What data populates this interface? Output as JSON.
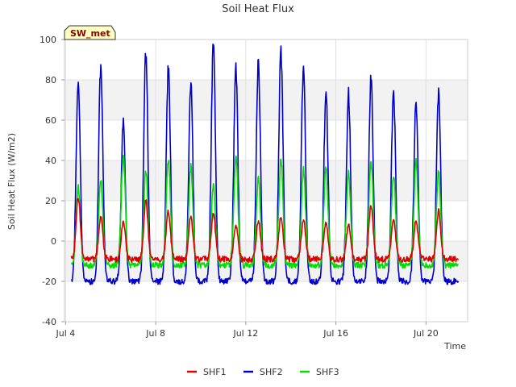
{
  "chart_data": {
    "type": "line",
    "title": "Soil Heat Flux",
    "xlabel": "Time",
    "ylabel": "Soil Heat Flux (W/m2)",
    "site_label": "SW_met",
    "xlim": [
      3.95,
      21.85
    ],
    "ylim": [
      -40,
      100
    ],
    "yticks": [
      -40,
      -20,
      0,
      20,
      40,
      60,
      80,
      100
    ],
    "xticks": [
      {
        "day": 4,
        "label": "Jul 4"
      },
      {
        "day": 8,
        "label": "Jul 8"
      },
      {
        "day": 12,
        "label": "Jul 12"
      },
      {
        "day": 16,
        "label": "Jul 16"
      },
      {
        "day": 20,
        "label": "Jul 20"
      }
    ],
    "grid": true,
    "legend_position": "bottom",
    "day_peaks": [
      {
        "day": 4,
        "SHF1": 22,
        "SHF2": 81,
        "SHF3": 27
      },
      {
        "day": 5,
        "SHF1": 12,
        "SHF2": 87,
        "SHF3": 30
      },
      {
        "day": 6,
        "SHF1": 10,
        "SHF2": 60,
        "SHF3": 42
      },
      {
        "day": 7,
        "SHF1": 20,
        "SHF2": 92,
        "SHF3": 35
      },
      {
        "day": 8,
        "SHF1": 15,
        "SHF2": 86,
        "SHF3": 41
      },
      {
        "day": 9,
        "SHF1": 12,
        "SHF2": 78,
        "SHF3": 37
      },
      {
        "day": 10,
        "SHF1": 14,
        "SHF2": 99,
        "SHF3": 28
      },
      {
        "day": 11,
        "SHF1": 8,
        "SHF2": 85,
        "SHF3": 42
      },
      {
        "day": 12,
        "SHF1": 10,
        "SHF2": 89,
        "SHF3": 32
      },
      {
        "day": 13,
        "SHF1": 12,
        "SHF2": 94,
        "SHF3": 41
      },
      {
        "day": 14,
        "SHF1": 11,
        "SHF2": 87,
        "SHF3": 36
      },
      {
        "day": 15,
        "SHF1": 9,
        "SHF2": 74,
        "SHF3": 37
      },
      {
        "day": 16,
        "SHF1": 8,
        "SHF2": 73,
        "SHF3": 34
      },
      {
        "day": 17,
        "SHF1": 18,
        "SHF2": 82,
        "SHF3": 40
      },
      {
        "day": 18,
        "SHF1": 11,
        "SHF2": 75,
        "SHF3": 33
      },
      {
        "day": 19,
        "SHF1": 10,
        "SHF2": 69,
        "SHF3": 40
      },
      {
        "day": 20,
        "SHF1": 15,
        "SHF2": 74,
        "SHF3": 34
      }
    ],
    "night_lows": {
      "SHF1": -9,
      "SHF2": -20,
      "SHF3": -12
    },
    "series": [
      {
        "name": "SHF1",
        "color": "#dd0000"
      },
      {
        "name": "SHF2",
        "color": "#0000cc"
      },
      {
        "name": "SHF3",
        "color": "#00dd00"
      }
    ]
  }
}
